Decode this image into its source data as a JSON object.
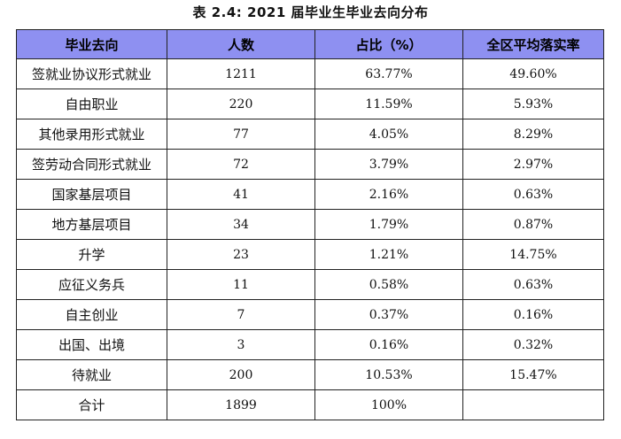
{
  "caption": "表 2.4: 2021 届毕业生毕业去向分布",
  "colors": {
    "header_background": "#8e90f1",
    "border": "#222222"
  },
  "table": {
    "headers": [
      "毕业去向",
      "人数",
      "占比（%）",
      "全区平均落实率"
    ],
    "rows": [
      [
        "签就业协议形式就业",
        "1211",
        "63.77%",
        "49.60%"
      ],
      [
        "自由职业",
        "220",
        "11.59%",
        "5.93%"
      ],
      [
        "其他录用形式就业",
        "77",
        "4.05%",
        "8.29%"
      ],
      [
        "签劳动合同形式就业",
        "72",
        "3.79%",
        "2.97%"
      ],
      [
        "国家基层项目",
        "41",
        "2.16%",
        "0.63%"
      ],
      [
        "地方基层项目",
        "34",
        "1.79%",
        "0.87%"
      ],
      [
        "升学",
        "23",
        "1.21%",
        "14.75%"
      ],
      [
        "应征义务兵",
        "11",
        "0.58%",
        "0.63%"
      ],
      [
        "自主创业",
        "7",
        "0.37%",
        "0.16%"
      ],
      [
        "出国、出境",
        "3",
        "0.16%",
        "0.32%"
      ],
      [
        "待就业",
        "200",
        "10.53%",
        "15.47%"
      ],
      [
        "合计",
        "1899",
        "100%",
        ""
      ]
    ]
  }
}
